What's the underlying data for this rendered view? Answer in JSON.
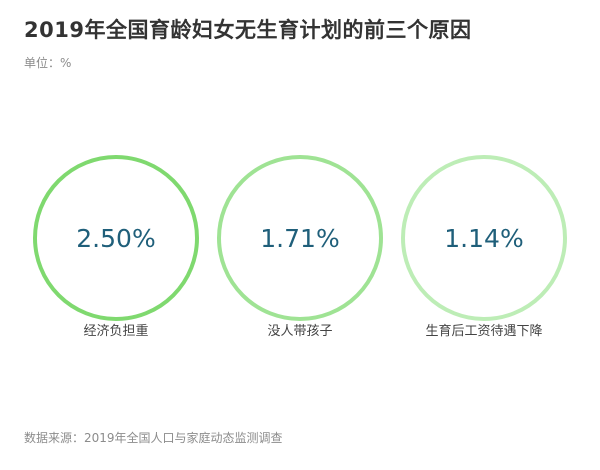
{
  "title": "2019年全国育龄妇女无生育计划的前三个原因",
  "unit": "单位：%",
  "source": "数据来源：2019年全国人口与家庭动态监测调查",
  "chart_data": {
    "type": "bubble",
    "categories": [
      "经济负担重",
      "没人带孩子",
      "生育后工资待遇下降"
    ],
    "values": [
      2.5,
      1.71,
      1.14
    ],
    "value_labels": [
      "2.50%",
      "1.71%",
      "1.14%"
    ],
    "ring_colors": [
      "#7fd96f",
      "#9fe394",
      "#bdedb6"
    ],
    "value_color": "#1f5f7a",
    "label_color": "#444444"
  }
}
